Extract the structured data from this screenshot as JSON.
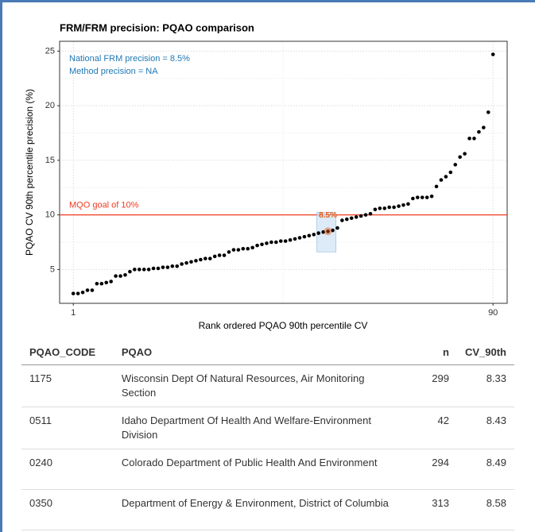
{
  "chart_data": {
    "type": "scatter",
    "title": "FRM/FRM precision: PQAO comparison",
    "xlabel": "Rank ordered PQAO 90th percentile CV",
    "ylabel": "PQAO CV 90th percentile precision (%)",
    "x": [
      1,
      2,
      3,
      4,
      5,
      6,
      7,
      8,
      9,
      10,
      11,
      12,
      13,
      14,
      15,
      16,
      17,
      18,
      19,
      20,
      21,
      22,
      23,
      24,
      25,
      26,
      27,
      28,
      29,
      30,
      31,
      32,
      33,
      34,
      35,
      36,
      37,
      38,
      39,
      40,
      41,
      42,
      43,
      44,
      45,
      46,
      47,
      48,
      49,
      50,
      51,
      52,
      53,
      54,
      55,
      56,
      57,
      58,
      59,
      60,
      61,
      62,
      63,
      64,
      65,
      66,
      67,
      68,
      69,
      70,
      71,
      72,
      73,
      74,
      75,
      76,
      77,
      78,
      79,
      80,
      81,
      82,
      83,
      84,
      85,
      86,
      87,
      88,
      89,
      90
    ],
    "values": [
      2.8,
      2.8,
      2.9,
      3.1,
      3.1,
      3.7,
      3.7,
      3.8,
      3.9,
      4.4,
      4.4,
      4.5,
      4.8,
      5.0,
      5.0,
      5.0,
      5.0,
      5.1,
      5.1,
      5.2,
      5.2,
      5.3,
      5.3,
      5.5,
      5.6,
      5.7,
      5.8,
      5.9,
      6.0,
      6.0,
      6.2,
      6.3,
      6.3,
      6.6,
      6.8,
      6.8,
      6.9,
      6.9,
      7.0,
      7.2,
      7.3,
      7.4,
      7.5,
      7.5,
      7.6,
      7.6,
      7.7,
      7.8,
      7.9,
      8.0,
      8.1,
      8.2,
      8.33,
      8.43,
      8.49,
      8.58,
      8.8,
      9.5,
      9.6,
      9.7,
      9.8,
      9.9,
      10.0,
      10.1,
      10.5,
      10.6,
      10.6,
      10.7,
      10.7,
      10.8,
      10.9,
      11.0,
      11.5,
      11.6,
      11.6,
      11.6,
      11.7,
      12.6,
      13.2,
      13.5,
      13.9,
      14.6,
      15.3,
      15.6,
      17.0,
      17.0,
      17.6,
      18.0,
      19.4,
      24.7
    ],
    "color": "#000000",
    "xlim": [
      -1.9,
      93
    ],
    "ylim": [
      1.9,
      25.9
    ],
    "xticks": [
      1,
      90
    ],
    "yticks": [
      5,
      10,
      15,
      20,
      25
    ],
    "grid": true,
    "annotations": [
      "National FRM precision = 8.5%",
      "Method precision = NA"
    ],
    "annotation_color": "#1f78b4",
    "hline": {
      "value": 10,
      "label": "MQO goal of 10%",
      "color": "#f03b20"
    },
    "highlight": {
      "x": 55,
      "y": 8.5,
      "label": "8.5%",
      "color": "#e6550d"
    }
  },
  "table": {
    "columns": [
      "PQAO_CODE",
      "PQAO",
      "n",
      "CV_90th"
    ],
    "rows": [
      [
        "1175",
        "Wisconsin Dept Of Natural Resources, Air Monitoring Section",
        299,
        8.33
      ],
      [
        "0511",
        "Idaho Department Of Health And Welfare-Environment Division",
        42,
        8.43
      ],
      [
        "0240",
        "Colorado Department of Public Health And Environment",
        294,
        8.49
      ],
      [
        "0350",
        "Department of Energy & Environment, District of Columbia",
        313,
        8.58
      ]
    ]
  }
}
